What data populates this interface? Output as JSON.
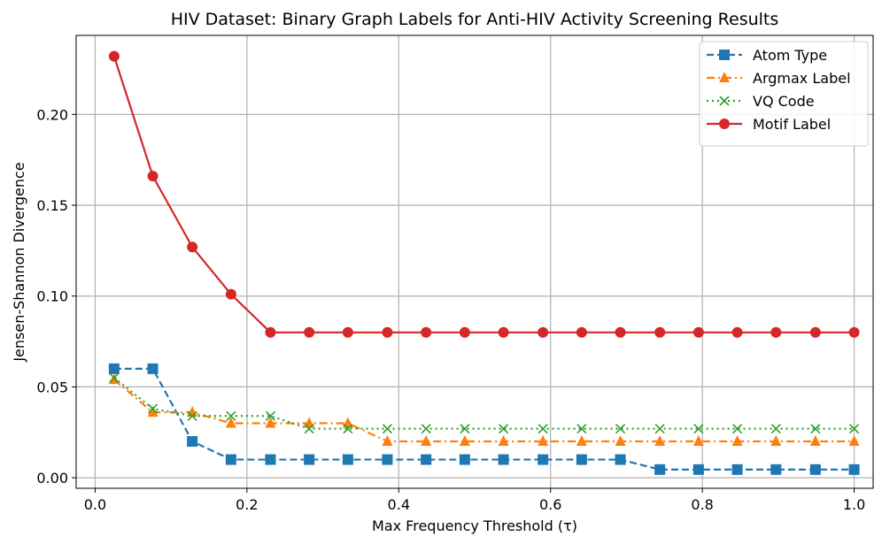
{
  "chart_data": {
    "type": "line",
    "title": "HIV Dataset: Binary Graph Labels for Anti-HIV Activity Screening Results",
    "xlabel": "Max Frequency Threshold (τ)",
    "ylabel": "Jensen-Shannon Divergence",
    "xlim": [
      -0.025,
      1.025
    ],
    "ylim": [
      -0.0058,
      0.2435
    ],
    "x_ticks": [
      0.0,
      0.2,
      0.4,
      0.6,
      0.8,
      1.0
    ],
    "x_tick_labels": [
      "0.0",
      "0.2",
      "0.4",
      "0.6",
      "0.8",
      "1.0"
    ],
    "y_ticks": [
      0.0,
      0.05,
      0.1,
      0.15,
      0.2
    ],
    "y_tick_labels": [
      "0.00",
      "0.05",
      "0.10",
      "0.15",
      "0.20"
    ],
    "grid": true,
    "legend_position": "top-right",
    "x": [
      0.025,
      0.076,
      0.128,
      0.179,
      0.231,
      0.282,
      0.333,
      0.385,
      0.436,
      0.487,
      0.538,
      0.59,
      0.641,
      0.692,
      0.744,
      0.795,
      0.846,
      0.897,
      0.949,
      1.0
    ],
    "series": [
      {
        "name": "Atom Type",
        "color": "#1f77b4",
        "marker": "square",
        "linestyle": "dashed",
        "values": [
          0.06,
          0.06,
          0.02,
          0.01,
          0.01,
          0.01,
          0.01,
          0.01,
          0.01,
          0.01,
          0.01,
          0.01,
          0.01,
          0.01,
          0.0045,
          0.0045,
          0.0045,
          0.0045,
          0.0045,
          0.0045
        ]
      },
      {
        "name": "Argmax Label",
        "color": "#ff7f0e",
        "marker": "triangle",
        "linestyle": "dashdot",
        "values": [
          0.054,
          0.036,
          0.036,
          0.03,
          0.03,
          0.03,
          0.03,
          0.02,
          0.02,
          0.02,
          0.02,
          0.02,
          0.02,
          0.02,
          0.02,
          0.02,
          0.02,
          0.02,
          0.02,
          0.02
        ]
      },
      {
        "name": "VQ Code",
        "color": "#2ca02c",
        "marker": "x",
        "linestyle": "dotted",
        "values": [
          0.055,
          0.038,
          0.034,
          0.034,
          0.034,
          0.027,
          0.027,
          0.027,
          0.027,
          0.027,
          0.027,
          0.027,
          0.027,
          0.027,
          0.027,
          0.027,
          0.027,
          0.027,
          0.027,
          0.027
        ]
      },
      {
        "name": "Motif Label",
        "color": "#d62728",
        "marker": "circle",
        "linestyle": "solid",
        "values": [
          0.232,
          0.166,
          0.127,
          0.101,
          0.08,
          0.08,
          0.08,
          0.08,
          0.08,
          0.08,
          0.08,
          0.08,
          0.08,
          0.08,
          0.08,
          0.08,
          0.08,
          0.08,
          0.08,
          0.08
        ]
      }
    ]
  }
}
